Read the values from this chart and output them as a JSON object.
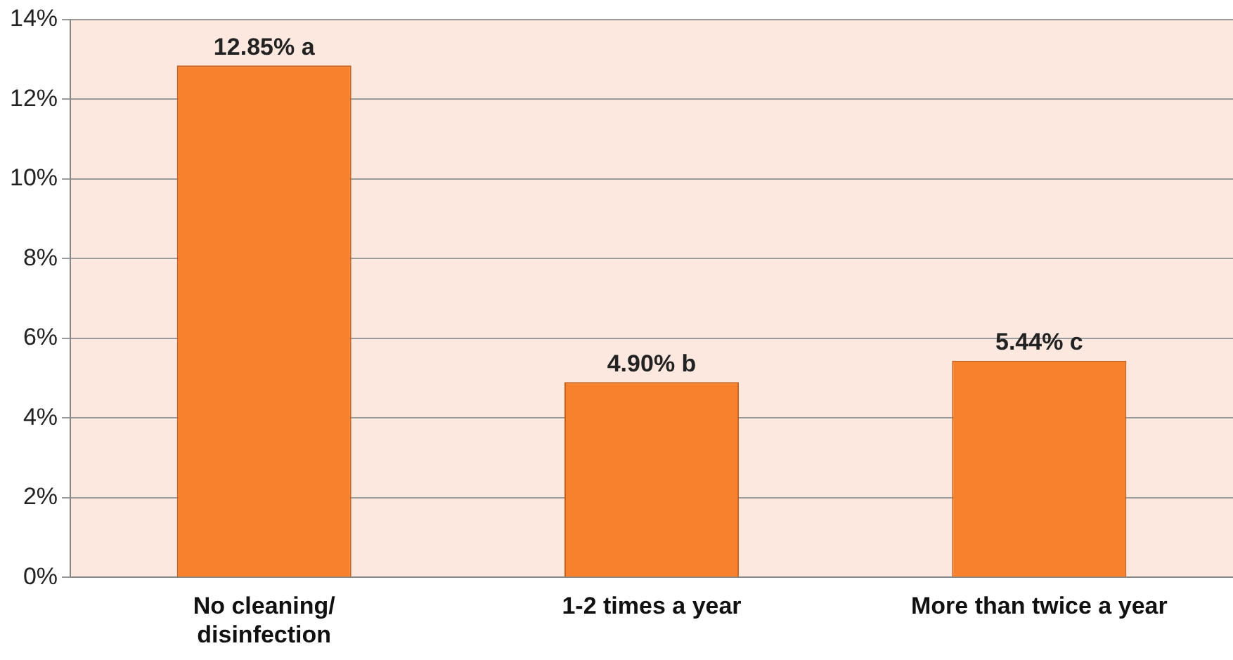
{
  "chart_data": {
    "type": "bar",
    "categories": [
      "No cleaning/ disinfection",
      "1-2 times a year",
      "More than twice a year"
    ],
    "values": [
      12.85,
      4.9,
      5.44
    ],
    "value_labels": [
      "12.85% a",
      "4.90% b",
      "5.44% c"
    ],
    "color": "#f7812c",
    "ylim": [
      0,
      14
    ],
    "yticks": [
      {
        "value": 0,
        "label": "0%"
      },
      {
        "value": 2,
        "label": "2%"
      },
      {
        "value": 4,
        "label": "4%"
      },
      {
        "value": 6,
        "label": "6%"
      },
      {
        "value": 8,
        "label": "8%"
      },
      {
        "value": 10,
        "label": "10%"
      },
      {
        "value": 12,
        "label": "12%"
      },
      {
        "value": 14,
        "label": "14%"
      }
    ],
    "grid": "y",
    "legend": false
  }
}
